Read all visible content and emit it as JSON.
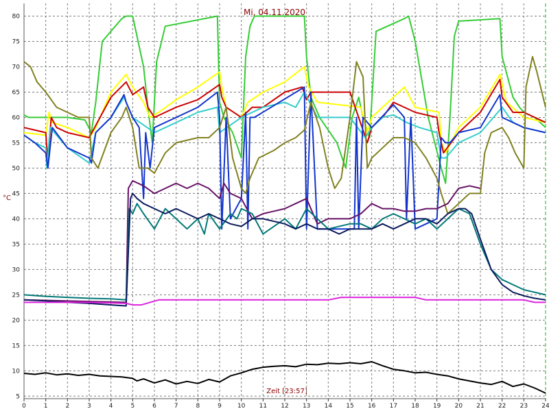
{
  "chart_data": {
    "type": "line",
    "title": "Mi, 04.11.2020",
    "xlabel": "Zeit [23:57]",
    "ylabel": "°C",
    "xlim": [
      0,
      24
    ],
    "ylim": [
      4.5,
      82.5
    ],
    "xticks": [
      0,
      1,
      2,
      3,
      4,
      5,
      6,
      7,
      8,
      9,
      10,
      11,
      12,
      13,
      14,
      15,
      16,
      17,
      18,
      19,
      20,
      21,
      22,
      23,
      24
    ],
    "yticks": [
      5,
      10,
      15,
      20,
      25,
      30,
      35,
      40,
      45,
      50,
      55,
      60,
      65,
      70,
      75,
      80
    ],
    "grid": true,
    "series": [
      {
        "color": "#33cc33",
        "x": [
          0,
          0.2,
          1,
          2,
          2.8,
          3.1,
          3.3,
          3.6,
          4.5,
          4.7,
          5,
          5.5,
          5.7,
          5.9,
          6.1,
          6.5,
          8.9,
          9.0,
          9.2,
          9.6,
          10.0,
          10.2,
          10.4,
          10.6,
          12.9,
          13.0,
          13.2,
          13.6,
          14.4,
          14.8,
          15.1,
          15.4,
          15.6,
          15.9,
          16.2,
          17.5,
          17.7,
          18,
          18.6,
          19.2,
          19.4,
          19.6,
          19.8,
          20,
          21.9,
          22.0,
          22.5,
          22.8,
          23,
          23.5,
          24
        ],
        "y": [
          60.5,
          60,
          60,
          60,
          59.5,
          57,
          63,
          75,
          79.5,
          80,
          80,
          70,
          62,
          55,
          71,
          78,
          80,
          63,
          60,
          57,
          52,
          72,
          78,
          80,
          80,
          72,
          64,
          60,
          55,
          50,
          60,
          64,
          60,
          56,
          77,
          79.5,
          80,
          75,
          60,
          50,
          47,
          60,
          76,
          79,
          79.5,
          72,
          64,
          62,
          61,
          60,
          58
        ]
      },
      {
        "color": "#ffff00",
        "x": [
          0,
          1,
          1.15,
          1.3,
          2,
          3,
          3.3,
          4,
          4.7,
          5.0,
          5.5,
          5.8,
          6.2,
          7,
          8,
          9,
          9.1,
          9.3,
          10,
          10.3,
          11,
          12,
          12.9,
          13.1,
          13.5,
          15.5,
          15.8,
          16,
          17,
          17.5,
          18,
          19.1,
          19.2,
          19.4,
          20,
          21,
          21.9,
          22.2,
          23,
          24
        ],
        "y": [
          57,
          56.5,
          61,
          59,
          58,
          56,
          58,
          65,
          68.5,
          66,
          63,
          60,
          61,
          63.5,
          66,
          69,
          66,
          62,
          60,
          63,
          65,
          67,
          70,
          66,
          63,
          62,
          57,
          60,
          64,
          66,
          62,
          61,
          55,
          53,
          58,
          62,
          68.5,
          63,
          60,
          59
        ]
      },
      {
        "color": "#cc0000",
        "x": [
          0,
          0.5,
          1,
          1.1,
          1.25,
          1.5,
          2,
          3,
          3.5,
          4,
          4.7,
          5,
          5.5,
          5.7,
          6,
          7,
          8,
          9,
          9.1,
          9.3,
          10,
          10.5,
          11,
          12,
          12.8,
          13,
          13.2,
          14,
          15,
          15.8,
          16,
          16.5,
          17,
          17.5,
          18,
          19,
          19.1,
          19.3,
          20,
          21,
          21.9,
          22,
          22.5,
          23,
          23.5,
          24
        ],
        "y": [
          58,
          57.5,
          57,
          51,
          60,
          58,
          57,
          56,
          60,
          64,
          67,
          64.5,
          66,
          62,
          60,
          62,
          63.5,
          66.5,
          64,
          62,
          60,
          62,
          62,
          65,
          66,
          63.5,
          65,
          65,
          65,
          55,
          58,
          60,
          63,
          62,
          61,
          60,
          57,
          53,
          57,
          61,
          67.5,
          64,
          61,
          61,
          60,
          59
        ]
      },
      {
        "color": "#33cccc",
        "x": [
          0,
          0.5,
          1,
          1.05,
          1.2,
          2,
          2.5,
          3,
          3.3,
          4,
          4.6,
          4.7,
          5,
          6,
          7,
          8,
          8.9,
          9,
          10,
          11,
          12,
          12.5,
          12.9,
          13.5,
          15,
          15.7,
          16,
          16.5,
          17,
          17.6,
          18.2,
          19,
          19.2,
          19.4,
          20,
          21,
          22,
          22.5,
          23,
          24
        ],
        "y": [
          56.5,
          55,
          54,
          50,
          58,
          54,
          52.5,
          51,
          57,
          60,
          64,
          63,
          60,
          57,
          59,
          61,
          62,
          57,
          60,
          62,
          63,
          62,
          65,
          60,
          60,
          56,
          58,
          60,
          60.5,
          59,
          58,
          57,
          52,
          52,
          55,
          57,
          62,
          59,
          58,
          57
        ]
      },
      {
        "color": "#1133cc",
        "x": [
          0,
          0.5,
          1,
          1.1,
          1.3,
          2,
          3,
          3.1,
          3.3,
          4,
          4.6,
          4.7,
          5.0,
          5.3,
          5.5,
          5.6,
          5.8,
          6.0,
          7,
          8,
          8.9,
          9.0,
          9.1,
          9.3,
          9.5,
          10.0,
          10.2,
          10.3,
          10.4,
          10.6,
          12.9,
          13.0,
          13.2,
          13.5,
          15.2,
          15.3,
          15.4,
          15.6,
          16,
          17,
          17.5,
          17.6,
          17.8,
          18,
          19,
          19.2,
          19.4,
          19.6,
          20,
          21,
          21.9,
          22.0,
          22.5,
          23,
          24
        ],
        "y": [
          56.5,
          55,
          53,
          50,
          58,
          54,
          52,
          51,
          57,
          60,
          64.5,
          63,
          60,
          58,
          44,
          57,
          50,
          58,
          60,
          62,
          65,
          60,
          38,
          60,
          40,
          44,
          61,
          38,
          60,
          60,
          66,
          38,
          65,
          38,
          38,
          60,
          38,
          60,
          58,
          62.5,
          60,
          40,
          60,
          38,
          40,
          56,
          55,
          55,
          57,
          58,
          64.5,
          60,
          59,
          58,
          57
        ]
      },
      {
        "color": "#808020",
        "x": [
          0,
          0.3,
          0.6,
          1,
          1.5,
          2,
          2.5,
          3,
          3.1,
          3.4,
          4,
          4.5,
          4.7,
          5,
          5.3,
          5.7,
          6,
          6.5,
          7,
          8,
          8.5,
          9,
          9.3,
          9.6,
          10,
          10.2,
          10.4,
          10.8,
          11.5,
          12,
          12.5,
          12.9,
          13.2,
          13.6,
          14,
          14.3,
          14.6,
          15,
          15.3,
          15.6,
          15.8,
          16,
          16.5,
          17,
          17.5,
          18,
          18.5,
          19,
          19.2,
          19.5,
          20,
          20.5,
          20.8,
          21,
          21.2,
          21.5,
          22,
          22.3,
          22.6,
          23,
          23.1,
          23.4,
          23.6,
          24
        ],
        "y": [
          71,
          70,
          67,
          65,
          62,
          61,
          60,
          60,
          52,
          50,
          57,
          60,
          62,
          58,
          50,
          50,
          49,
          53,
          55,
          56,
          56,
          58,
          62,
          52,
          46,
          45,
          48,
          52,
          53.5,
          55,
          56,
          57.5,
          63,
          58,
          50,
          46,
          48,
          60,
          71,
          68,
          50,
          52,
          54,
          56,
          56,
          55,
          52,
          48,
          45,
          41,
          43,
          45,
          45,
          45,
          53,
          57,
          58,
          56,
          53,
          50,
          66,
          72,
          69,
          62
        ]
      },
      {
        "color": "#661166",
        "x": [
          0,
          4.7,
          4.8,
          5.0,
          5.5,
          6,
          6.5,
          7,
          7.5,
          8,
          8.5,
          9,
          9.2,
          9.5,
          10,
          10.5,
          11,
          11.5,
          12,
          12.5,
          13,
          13.5,
          14,
          15,
          15.5,
          16,
          16.5,
          17,
          17.5,
          18,
          18.5,
          19,
          19.5,
          20,
          20.5,
          21
        ],
        "y": [
          24,
          23.5,
          46,
          47.5,
          46.5,
          45,
          46,
          47,
          46,
          47,
          46,
          44,
          47,
          45,
          44,
          40,
          41,
          41.5,
          42,
          43,
          44,
          39,
          40,
          40,
          41,
          43,
          42,
          42,
          41.5,
          41.5,
          42,
          42,
          43,
          46,
          46.5,
          46
        ]
      },
      {
        "color": "#007777",
        "x": [
          0,
          1,
          2,
          3,
          4,
          4.7,
          4.85,
          5.0,
          5.2,
          5.5,
          6,
          6.5,
          7,
          7.5,
          8,
          8.3,
          8.5,
          9,
          9.5,
          9.8,
          10,
          10.5,
          11,
          12,
          12.5,
          13,
          13.5,
          14,
          15,
          15.5,
          16,
          16.5,
          17,
          17.5,
          18,
          18.5,
          19,
          19.5,
          20,
          20.5,
          21,
          21.5,
          22,
          22.5,
          23,
          23.5,
          24
        ],
        "y": [
          25,
          24.7,
          24.5,
          24.3,
          24.2,
          24,
          42,
          41,
          43,
          41,
          38,
          42,
          40,
          38,
          40,
          37,
          41,
          38,
          41,
          40,
          42,
          41,
          37,
          40,
          38,
          42,
          40,
          38,
          39,
          39,
          38,
          40,
          41,
          40,
          39,
          40,
          38,
          40,
          42,
          41,
          35,
          30,
          28,
          27,
          26,
          25.5,
          25
        ]
      },
      {
        "color": "#0a1a5c",
        "x": [
          0,
          1,
          2,
          3,
          4,
          4.7,
          4.9,
          5.0,
          5.2,
          5.5,
          6,
          6.5,
          7,
          7.5,
          8,
          8.5,
          9,
          9.5,
          10,
          10.5,
          11,
          12,
          12.5,
          13,
          13.5,
          14,
          14.5,
          15,
          15.5,
          16,
          16.5,
          17,
          17.5,
          18,
          18.5,
          19,
          19.5,
          20,
          20.3,
          20.6,
          21,
          21.5,
          22,
          22.5,
          23,
          23.5,
          24
        ],
        "y": [
          24,
          23.8,
          23.5,
          23.3,
          23,
          22.8,
          44,
          45,
          44,
          43,
          42,
          41,
          42,
          41,
          40,
          41,
          40,
          39,
          38.5,
          40,
          40,
          39,
          38,
          39,
          38,
          38,
          37,
          38,
          38,
          38,
          39,
          38,
          39,
          40,
          40,
          39,
          41,
          42,
          42,
          41,
          36,
          30,
          27,
          25.5,
          24.8,
          24.3,
          24
        ]
      },
      {
        "color": "#dd22dd",
        "x": [
          0,
          1,
          2,
          3,
          4,
          4.7,
          5,
          5.4,
          5.8,
          6.2,
          7,
          8,
          9,
          10,
          11,
          12,
          13,
          14,
          14.6,
          15,
          16,
          17,
          18,
          18.3,
          18.5,
          19,
          20,
          21,
          22,
          23,
          23.5,
          24
        ],
        "y": [
          23.5,
          23.5,
          23.5,
          23.5,
          23.4,
          23.3,
          23,
          23,
          23.5,
          24,
          24,
          24,
          24,
          24,
          24,
          24,
          24,
          24,
          24.5,
          24.5,
          24.5,
          24.5,
          24.5,
          24.2,
          24,
          24,
          24,
          24,
          24,
          24,
          23.5,
          23.5
        ]
      },
      {
        "color": "#000000",
        "x": [
          0,
          0.5,
          1,
          1.5,
          2,
          2.5,
          3,
          3.5,
          4,
          4.5,
          5,
          5.2,
          5.5,
          6,
          6.5,
          7,
          7.5,
          8,
          8.5,
          9,
          9.5,
          10,
          10.5,
          11,
          11.5,
          12,
          12.5,
          13,
          13.5,
          14,
          14.5,
          15,
          15.5,
          16,
          16.5,
          17,
          17.5,
          18,
          18.5,
          19,
          19.5,
          20,
          20.5,
          21,
          21.5,
          22,
          22.5,
          23,
          23.5,
          24
        ],
        "y": [
          9.5,
          9.3,
          9.6,
          9.2,
          9.4,
          9.1,
          9.3,
          9.0,
          8.9,
          8.8,
          8.5,
          8.0,
          8.4,
          7.6,
          8.2,
          7.4,
          7.9,
          7.5,
          8.3,
          7.8,
          9.0,
          9.6,
          10.3,
          10.7,
          10.9,
          11.0,
          10.8,
          11.3,
          11.2,
          11.5,
          11.4,
          11.6,
          11.4,
          11.8,
          11.0,
          10.3,
          10.0,
          9.6,
          9.7,
          9.3,
          9.0,
          8.4,
          8.0,
          7.6,
          7.3,
          7.9,
          6.9,
          7.4,
          6.6,
          5.6
        ]
      }
    ]
  }
}
